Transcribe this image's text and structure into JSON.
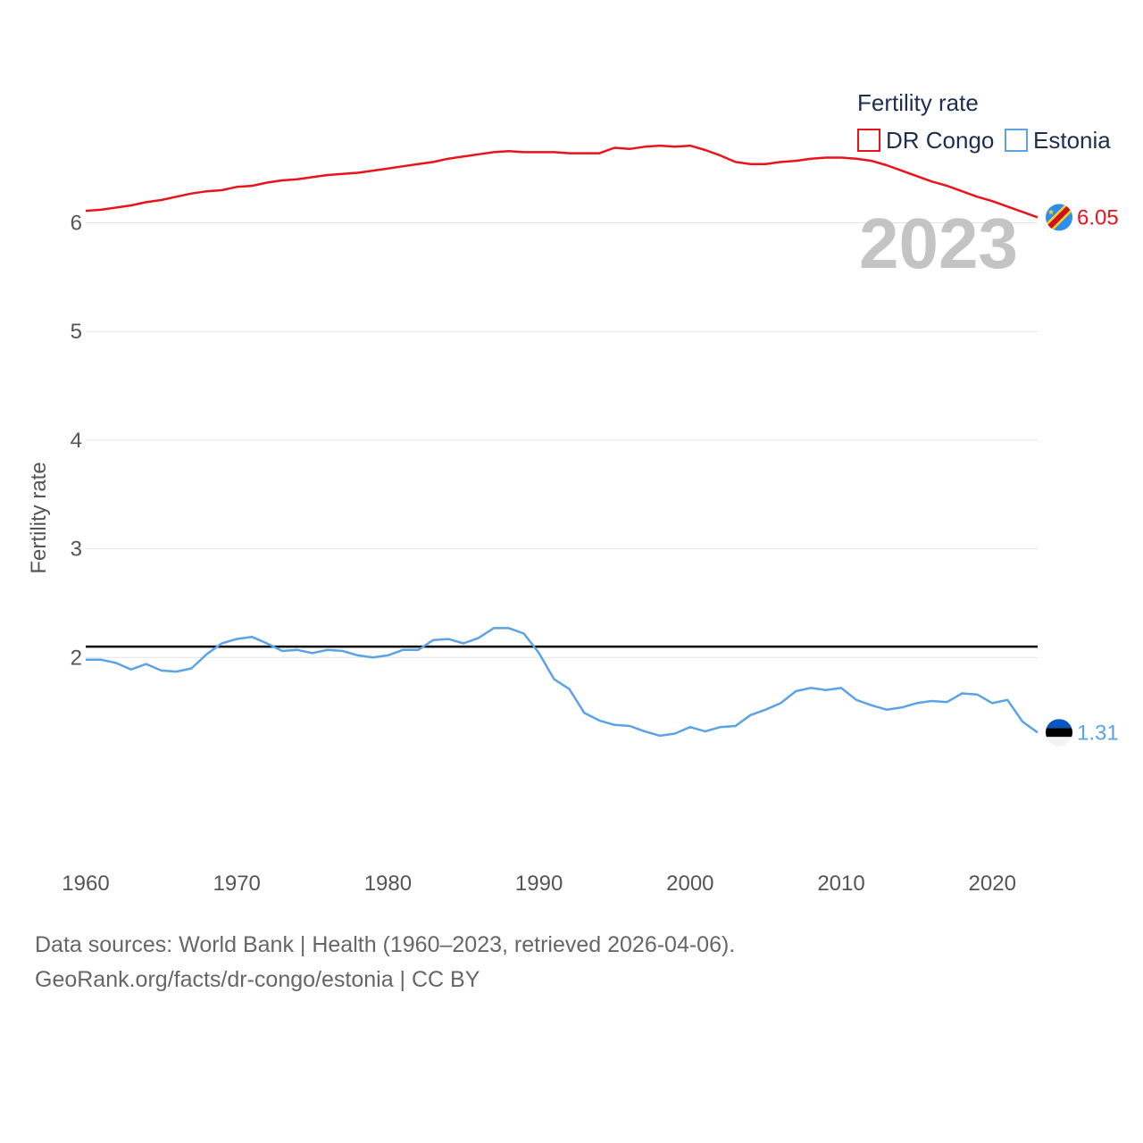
{
  "chart_data": {
    "type": "line",
    "title": "",
    "ylabel": "Fertility rate",
    "xlabel": "",
    "xlim": [
      1960,
      2023
    ],
    "ylim": [
      1,
      6.3
    ],
    "x_ticks": [
      1960,
      1970,
      1980,
      1990,
      2000,
      2010,
      2020
    ],
    "y_ticks": [
      2,
      3,
      4,
      5,
      6
    ],
    "grid": "horizontal",
    "legend": {
      "title": "Fertility rate",
      "position": "top-right"
    },
    "year_label": "2023",
    "reference_line": {
      "value": 2.1,
      "color": "#000000"
    },
    "x": [
      1960,
      1961,
      1962,
      1963,
      1964,
      1965,
      1966,
      1967,
      1968,
      1969,
      1970,
      1971,
      1972,
      1973,
      1974,
      1975,
      1976,
      1977,
      1978,
      1979,
      1980,
      1981,
      1982,
      1983,
      1984,
      1985,
      1986,
      1987,
      1988,
      1989,
      1990,
      1991,
      1992,
      1993,
      1994,
      1995,
      1996,
      1997,
      1998,
      1999,
      2000,
      2001,
      2002,
      2003,
      2004,
      2005,
      2006,
      2007,
      2008,
      2009,
      2010,
      2011,
      2012,
      2013,
      2014,
      2015,
      2016,
      2017,
      2018,
      2019,
      2020,
      2021,
      2022,
      2023
    ],
    "series": [
      {
        "name": "DR Congo",
        "color": "#e8131b",
        "end_label": "6.05",
        "flag_icon": "dr-congo-flag-icon",
        "values": [
          6.11,
          6.12,
          6.14,
          6.16,
          6.19,
          6.21,
          6.24,
          6.27,
          6.29,
          6.3,
          6.33,
          6.34,
          6.37,
          6.39,
          6.4,
          6.42,
          6.44,
          6.45,
          6.46,
          6.48,
          6.5,
          6.52,
          6.54,
          6.56,
          6.59,
          6.61,
          6.63,
          6.65,
          6.66,
          6.65,
          6.65,
          6.65,
          6.64,
          6.64,
          6.64,
          6.69,
          6.68,
          6.7,
          6.71,
          6.7,
          6.71,
          6.67,
          6.62,
          6.56,
          6.54,
          6.54,
          6.56,
          6.57,
          6.59,
          6.6,
          6.6,
          6.59,
          6.57,
          6.53,
          6.48,
          6.43,
          6.38,
          6.34,
          6.29,
          6.24,
          6.2,
          6.15,
          6.1,
          6.05
        ]
      },
      {
        "name": "Estonia",
        "color": "#5ba3e6",
        "end_label": "1.31",
        "flag_icon": "estonia-flag-icon",
        "values": [
          1.98,
          1.98,
          1.95,
          1.89,
          1.94,
          1.88,
          1.87,
          1.9,
          2.03,
          2.13,
          2.17,
          2.19,
          2.13,
          2.06,
          2.07,
          2.04,
          2.07,
          2.06,
          2.02,
          2.0,
          2.02,
          2.07,
          2.07,
          2.16,
          2.17,
          2.13,
          2.18,
          2.27,
          2.27,
          2.22,
          2.04,
          1.8,
          1.71,
          1.49,
          1.42,
          1.38,
          1.37,
          1.32,
          1.28,
          1.3,
          1.36,
          1.32,
          1.36,
          1.37,
          1.47,
          1.52,
          1.58,
          1.69,
          1.72,
          1.7,
          1.72,
          1.61,
          1.56,
          1.52,
          1.54,
          1.58,
          1.6,
          1.59,
          1.67,
          1.66,
          1.58,
          1.61,
          1.41,
          1.31
        ]
      }
    ]
  },
  "footer": {
    "sources": "Data sources: World Bank | Health (1960–2023, retrieved 2026-04-06).",
    "link": "GeoRank.org/facts/dr-congo/estonia | CC BY"
  }
}
